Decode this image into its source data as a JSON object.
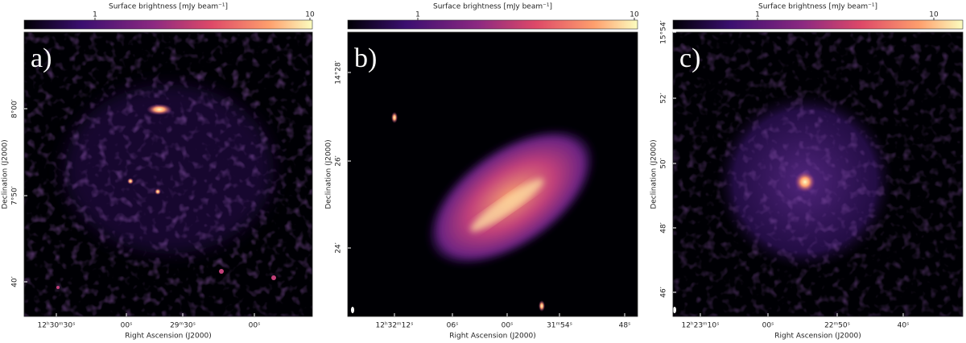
{
  "panels": [
    {
      "label": "a)",
      "colorbar": {
        "title": "Surface brightness [mJy beam⁻¹]",
        "ticks": [
          "1",
          "10"
        ]
      },
      "yticks": [
        "8°00′",
        "7°50′",
        "40′"
      ],
      "xticks": [
        "12ʰ30ᵐ30ˢ",
        "00ˢ",
        "29ᵐ30ˢ",
        "00ˢ"
      ],
      "xlabel": "Right Ascension (J2000)",
      "ylabel": "Declination (J2000)"
    },
    {
      "label": "b)",
      "colorbar": {
        "title": "Surface brightness [mJy beam⁻¹]",
        "ticks": [
          "1",
          "10"
        ]
      },
      "yticks": [
        "14°28′",
        "26′",
        "24′"
      ],
      "xticks": [
        "12ʰ32ᵐ12ˢ",
        "06ˢ",
        "00ˢ",
        "31ᵐ54ˢ",
        "48ˢ"
      ],
      "xlabel": "Right Ascension (J2000)",
      "ylabel": "Declination (J2000)"
    },
    {
      "label": "c)",
      "colorbar": {
        "title": "Surface brightness [mJy beam⁻¹]",
        "ticks": [
          "1",
          "10"
        ]
      },
      "yticks": [
        "15°54′",
        "52′",
        "50′",
        "48′",
        "46′"
      ],
      "xticks": [
        "12ʰ23ᵐ10ˢ",
        "00ˢ",
        "22ᵐ50ˢ",
        "40ˢ"
      ],
      "xlabel": "Right Ascension (J2000)",
      "ylabel": "Declination (J2000)"
    }
  ]
}
